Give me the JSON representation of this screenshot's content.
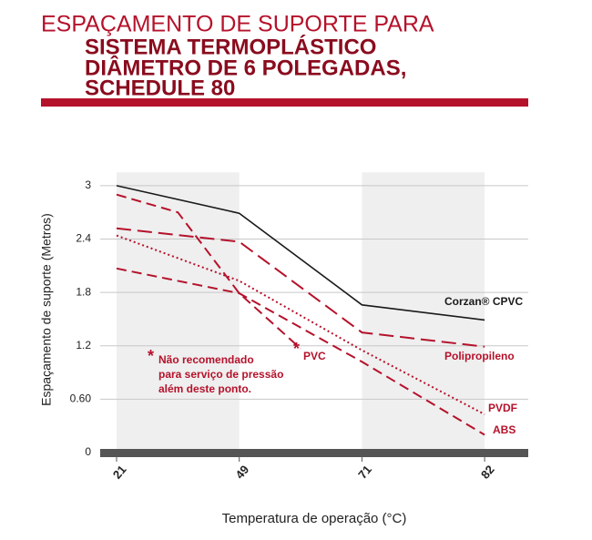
{
  "chart_data": {
    "type": "line",
    "title_top": "ESPAÇAMENTO DE SUPORTE PARA",
    "title_lines": [
      "SISTEMA TERMOPLÁSTICO",
      "DIÂMETRO DE 6 POLEGADAS,",
      "SCHEDULE 80"
    ],
    "x_label": "Temperatura de operação (°C)",
    "y_label": "Espaçamento de suporte (Metros)",
    "xticks": [
      21,
      49,
      71,
      82
    ],
    "xlim": [
      21,
      82
    ],
    "ylim": [
      0,
      3.15
    ],
    "yticks": [
      0,
      {
        "value": 0.6,
        "label": "0.60"
      },
      1.2,
      1.8,
      2.4,
      3
    ],
    "grid": true,
    "shaded_ranges": [
      [
        21,
        49
      ],
      [
        71,
        82
      ]
    ],
    "series": [
      {
        "name": "Corzan® CPVC",
        "color": "#1a1a1a",
        "dash": "solid",
        "x": [
          21,
          49,
          71,
          82
        ],
        "values": [
          3.0,
          2.69,
          1.66,
          1.49
        ]
      },
      {
        "name": "Polipropileno",
        "color": "#b5122b",
        "dash": "long",
        "x": [
          21,
          49,
          71,
          82
        ],
        "values": [
          2.52,
          2.37,
          1.35,
          1.19
        ]
      },
      {
        "name": "PVDF",
        "color": "#b5122b",
        "dash": "dotted",
        "x": [
          21,
          49,
          71,
          82
        ],
        "values": [
          2.44,
          1.93,
          1.15,
          0.43
        ]
      },
      {
        "name": "ABS",
        "color": "#b5122b",
        "dash": "dashed",
        "x": [
          21,
          49,
          71,
          82
        ],
        "values": [
          2.07,
          1.79,
          1.02,
          0.2
        ]
      },
      {
        "name": "PVC",
        "color": "#b5122b",
        "dash": "dashed",
        "x": [
          21,
          35,
          49,
          60
        ],
        "values": [
          2.9,
          2.7,
          1.79,
          1.17
        ]
      }
    ],
    "annotation": {
      "marker": "*",
      "lines": [
        "Não recomendado",
        "para serviço de pressão",
        "além deste ponto."
      ]
    }
  }
}
